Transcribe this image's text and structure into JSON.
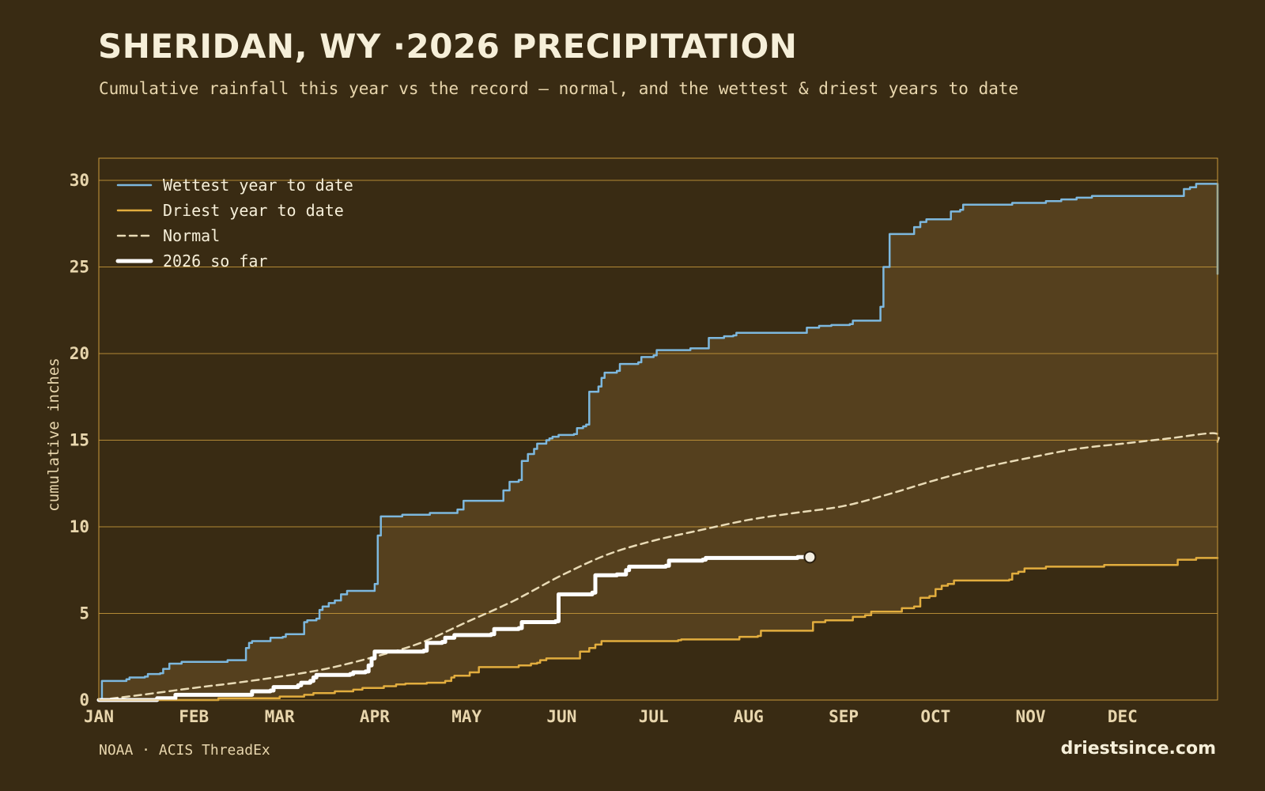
{
  "header": {
    "title": "SHERIDAN, WY ·2026 PRECIPITATION",
    "subtitle": "Cumulative rainfall this year vs the record — normal, and the wettest & driest years to date"
  },
  "footer": {
    "source": "NOAA · ACIS ThreadEx",
    "brand": "driestsince.com"
  },
  "colors": {
    "background": "#392b13",
    "band": "#55401e",
    "grid": "#c99a3b",
    "wettest": "#7db8de",
    "driest": "#e2ad3e",
    "normal": "#e9dbb6",
    "current": "#ffffff"
  },
  "chart_data": {
    "type": "line",
    "title": "SHERIDAN, WY ·2026 PRECIPITATION",
    "subtitle": "Cumulative rainfall this year vs the record — normal, and the wettest & driest years to date",
    "xlabel": "",
    "ylabel": "cumulative inches",
    "x_unit": "day of year",
    "xlim": [
      1,
      366
    ],
    "ylim": [
      0,
      30
    ],
    "y_ticks": [
      0,
      5,
      10,
      15,
      20,
      25,
      30
    ],
    "x_ticks": [
      {
        "label": "JAN",
        "day": 1
      },
      {
        "label": "FEB",
        "day": 32
      },
      {
        "label": "MAR",
        "day": 60
      },
      {
        "label": "APR",
        "day": 91
      },
      {
        "label": "MAY",
        "day": 121
      },
      {
        "label": "JUN",
        "day": 152
      },
      {
        "label": "JUL",
        "day": 182
      },
      {
        "label": "AUG",
        "day": 213
      },
      {
        "label": "SEP",
        "day": 244
      },
      {
        "label": "OCT",
        "day": 274
      },
      {
        "label": "NOV",
        "day": 305
      },
      {
        "label": "DEC",
        "day": 335
      }
    ],
    "grid": "horizontal",
    "legend_position": "top-left",
    "band_between": [
      "Wettest year to date",
      "Driest year to date"
    ],
    "series": [
      {
        "name": "Wettest year to date",
        "style": "step",
        "color": "#7db8de",
        "points": [
          [
            1,
            0
          ],
          [
            2,
            1.1
          ],
          [
            8,
            1.1
          ],
          [
            10,
            1.2
          ],
          [
            11,
            1.3
          ],
          [
            16,
            1.35
          ],
          [
            17,
            1.5
          ],
          [
            21,
            1.55
          ],
          [
            22,
            1.8
          ],
          [
            24,
            2.1
          ],
          [
            28,
            2.2
          ],
          [
            42,
            2.2
          ],
          [
            43,
            2.3
          ],
          [
            48,
            2.3
          ],
          [
            49,
            3.0
          ],
          [
            50,
            3.3
          ],
          [
            51,
            3.4
          ],
          [
            56,
            3.4
          ],
          [
            57,
            3.6
          ],
          [
            61,
            3.65
          ],
          [
            62,
            3.8
          ],
          [
            67,
            3.8
          ],
          [
            68,
            4.5
          ],
          [
            69,
            4.6
          ],
          [
            72,
            4.7
          ],
          [
            73,
            5.2
          ],
          [
            74,
            5.4
          ],
          [
            76,
            5.6
          ],
          [
            78,
            5.75
          ],
          [
            80,
            6.1
          ],
          [
            82,
            6.3
          ],
          [
            90,
            6.3
          ],
          [
            91,
            6.7
          ],
          [
            92,
            9.5
          ],
          [
            93,
            10.6
          ],
          [
            99,
            10.6
          ],
          [
            100,
            10.7
          ],
          [
            108,
            10.7
          ],
          [
            109,
            10.8
          ],
          [
            117,
            10.8
          ],
          [
            118,
            11.0
          ],
          [
            120,
            11.5
          ],
          [
            132,
            11.5
          ],
          [
            133,
            12.1
          ],
          [
            135,
            12.6
          ],
          [
            138,
            12.7
          ],
          [
            139,
            13.8
          ],
          [
            141,
            14.2
          ],
          [
            143,
            14.5
          ],
          [
            144,
            14.8
          ],
          [
            147,
            15.0
          ],
          [
            148,
            15.1
          ],
          [
            149,
            15.2
          ],
          [
            151,
            15.3
          ],
          [
            156,
            15.35
          ],
          [
            157,
            15.7
          ],
          [
            159,
            15.8
          ],
          [
            160,
            15.9
          ],
          [
            161,
            17.8
          ],
          [
            164,
            18.1
          ],
          [
            165,
            18.6
          ],
          [
            166,
            18.9
          ],
          [
            170,
            19.0
          ],
          [
            171,
            19.4
          ],
          [
            177,
            19.5
          ],
          [
            178,
            19.8
          ],
          [
            182,
            19.9
          ],
          [
            183,
            20.2
          ],
          [
            194,
            20.3
          ],
          [
            199,
            20.3
          ],
          [
            200,
            20.9
          ],
          [
            205,
            21.0
          ],
          [
            208,
            21.05
          ],
          [
            209,
            21.2
          ],
          [
            231,
            21.2
          ],
          [
            232,
            21.5
          ],
          [
            235,
            21.5
          ],
          [
            236,
            21.6
          ],
          [
            240,
            21.65
          ],
          [
            246,
            21.7
          ],
          [
            247,
            21.9
          ],
          [
            255,
            21.9
          ],
          [
            256,
            22.7
          ],
          [
            257,
            25.0
          ],
          [
            259,
            26.9
          ],
          [
            266,
            26.9
          ],
          [
            267,
            27.3
          ],
          [
            269,
            27.6
          ],
          [
            271,
            27.75
          ],
          [
            278,
            27.75
          ],
          [
            279,
            28.2
          ],
          [
            282,
            28.3
          ],
          [
            283,
            28.6
          ],
          [
            298,
            28.6
          ],
          [
            299,
            28.7
          ],
          [
            309,
            28.7
          ],
          [
            310,
            28.8
          ],
          [
            315,
            28.9
          ],
          [
            320,
            29.0
          ],
          [
            325,
            29.1
          ],
          [
            354,
            29.1
          ],
          [
            355,
            29.5
          ],
          [
            357,
            29.6
          ],
          [
            359,
            29.8
          ],
          [
            365,
            29.8
          ],
          [
            366,
            24.6
          ]
        ]
      },
      {
        "name": "Driest year to date",
        "style": "step",
        "color": "#e2ad3e",
        "points": [
          [
            1,
            0
          ],
          [
            32,
            0
          ],
          [
            40,
            0.1
          ],
          [
            60,
            0.2
          ],
          [
            68,
            0.3
          ],
          [
            71,
            0.4
          ],
          [
            78,
            0.5
          ],
          [
            84,
            0.6
          ],
          [
            87,
            0.7
          ],
          [
            94,
            0.8
          ],
          [
            98,
            0.9
          ],
          [
            101,
            0.95
          ],
          [
            108,
            1.0
          ],
          [
            114,
            1.1
          ],
          [
            116,
            1.3
          ],
          [
            117,
            1.4
          ],
          [
            122,
            1.6
          ],
          [
            125,
            1.9
          ],
          [
            137,
            1.9
          ],
          [
            138,
            2.0
          ],
          [
            142,
            2.1
          ],
          [
            144,
            2.15
          ],
          [
            145,
            2.3
          ],
          [
            147,
            2.4
          ],
          [
            157,
            2.4
          ],
          [
            158,
            2.8
          ],
          [
            161,
            3.0
          ],
          [
            163,
            3.2
          ],
          [
            165,
            3.4
          ],
          [
            179,
            3.4
          ],
          [
            190,
            3.45
          ],
          [
            191,
            3.5
          ],
          [
            209,
            3.5
          ],
          [
            210,
            3.65
          ],
          [
            216,
            3.7
          ],
          [
            217,
            4.0
          ],
          [
            233,
            4.0
          ],
          [
            234,
            4.5
          ],
          [
            238,
            4.6
          ],
          [
            246,
            4.6
          ],
          [
            247,
            4.8
          ],
          [
            251,
            4.9
          ],
          [
            253,
            5.1
          ],
          [
            262,
            5.1
          ],
          [
            263,
            5.3
          ],
          [
            267,
            5.4
          ],
          [
            269,
            5.9
          ],
          [
            272,
            6.0
          ],
          [
            274,
            6.4
          ],
          [
            276,
            6.6
          ],
          [
            278,
            6.7
          ],
          [
            280,
            6.9
          ],
          [
            298,
            6.95
          ],
          [
            299,
            7.3
          ],
          [
            301,
            7.4
          ],
          [
            303,
            7.6
          ],
          [
            309,
            7.6
          ],
          [
            310,
            7.7
          ],
          [
            328,
            7.7
          ],
          [
            329,
            7.8
          ],
          [
            352,
            7.8
          ],
          [
            353,
            8.1
          ],
          [
            359,
            8.2
          ],
          [
            366,
            8.2
          ]
        ]
      },
      {
        "name": "Normal",
        "style": "dashed",
        "color": "#e9dbb6",
        "points": [
          [
            1,
            0
          ],
          [
            15,
            0.3
          ],
          [
            32,
            0.7
          ],
          [
            46,
            1.0
          ],
          [
            60,
            1.35
          ],
          [
            75,
            1.8
          ],
          [
            91,
            2.5
          ],
          [
            106,
            3.3
          ],
          [
            121,
            4.5
          ],
          [
            136,
            5.7
          ],
          [
            152,
            7.2
          ],
          [
            167,
            8.4
          ],
          [
            182,
            9.2
          ],
          [
            197,
            9.8
          ],
          [
            213,
            10.4
          ],
          [
            228,
            10.8
          ],
          [
            244,
            11.2
          ],
          [
            259,
            11.9
          ],
          [
            274,
            12.7
          ],
          [
            289,
            13.4
          ],
          [
            305,
            14.0
          ],
          [
            320,
            14.5
          ],
          [
            335,
            14.8
          ],
          [
            350,
            15.1
          ],
          [
            365,
            15.4
          ],
          [
            366,
            14.9
          ]
        ]
      },
      {
        "name": "2026 so far",
        "style": "step",
        "color": "#ffffff",
        "end_marker": true,
        "points": [
          [
            1,
            0
          ],
          [
            20,
            0.1
          ],
          [
            26,
            0.3
          ],
          [
            50,
            0.3
          ],
          [
            51,
            0.5
          ],
          [
            57,
            0.55
          ],
          [
            58,
            0.75
          ],
          [
            66,
            0.85
          ],
          [
            67,
            1.0
          ],
          [
            70,
            1.1
          ],
          [
            71,
            1.3
          ],
          [
            72,
            1.45
          ],
          [
            83,
            1.5
          ],
          [
            84,
            1.6
          ],
          [
            88,
            1.65
          ],
          [
            89,
            2.0
          ],
          [
            90,
            2.4
          ],
          [
            91,
            2.8
          ],
          [
            107,
            2.85
          ],
          [
            108,
            3.3
          ],
          [
            113,
            3.35
          ],
          [
            114,
            3.6
          ],
          [
            117,
            3.75
          ],
          [
            129,
            3.8
          ],
          [
            130,
            4.1
          ],
          [
            138,
            4.15
          ],
          [
            139,
            4.5
          ],
          [
            150,
            4.55
          ],
          [
            151,
            6.1
          ],
          [
            162,
            6.2
          ],
          [
            163,
            7.2
          ],
          [
            170,
            7.25
          ],
          [
            173,
            7.5
          ],
          [
            174,
            7.7
          ],
          [
            186,
            7.75
          ],
          [
            187,
            8.05
          ],
          [
            198,
            8.1
          ],
          [
            199,
            8.2
          ],
          [
            229,
            8.25
          ],
          [
            233,
            8.25
          ]
        ]
      }
    ]
  }
}
